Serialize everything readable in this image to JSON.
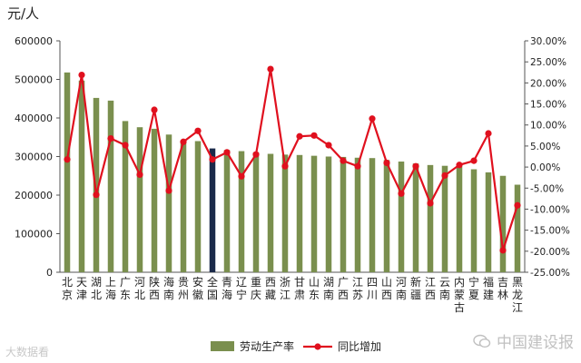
{
  "chart_data": {
    "type": "bar",
    "unit_label": "元/人",
    "categories": [
      "北京",
      "天津",
      "湖北",
      "上海",
      "广东",
      "河北",
      "陕西",
      "海南",
      "贵州",
      "安徽",
      "全国",
      "青海",
      "辽宁",
      "重庆",
      "西藏",
      "浙江",
      "甘肃",
      "山东",
      "湖南",
      "广西",
      "江苏",
      "四川",
      "山西",
      "河南",
      "新疆",
      "江西",
      "云南",
      "内蒙古",
      "宁夏",
      "福建",
      "吉林",
      "黑龙江"
    ],
    "series": [
      {
        "name": "劳动生产率",
        "type": "bar",
        "axis": "left",
        "color": "#7a8f4e",
        "highlight_color": "#1b2a4a",
        "highlight_index": 10,
        "values": [
          518000,
          497000,
          452000,
          445000,
          392000,
          376000,
          372000,
          357000,
          342000,
          340000,
          321000,
          317000,
          314000,
          311000,
          307000,
          305000,
          304000,
          302000,
          300000,
          299000,
          297000,
          296000,
          291000,
          287000,
          282000,
          278000,
          276000,
          275000,
          267000,
          259000,
          250000,
          227000
        ]
      },
      {
        "name": "同比增加",
        "type": "line",
        "axis": "right",
        "color": "#e0101e",
        "values": [
          1.8,
          21.9,
          -6.6,
          6.8,
          5.2,
          -1.8,
          13.6,
          -5.6,
          6.0,
          8.6,
          1.8,
          3.5,
          -2.2,
          3.0,
          23.3,
          0.2,
          7.3,
          7.5,
          5.2,
          1.5,
          0.2,
          11.5,
          1.0,
          -6.3,
          0.2,
          -8.6,
          -2.0,
          0.5,
          1.5,
          8.0,
          -19.8,
          -9.1
        ]
      }
    ],
    "y_left": {
      "min": 0,
      "max": 600000,
      "step": 100000
    },
    "y_right": {
      "min": -25,
      "max": 30,
      "step": 5
    },
    "legend_position": "bottom",
    "grid": false
  },
  "watermark": {
    "left": "大数据看",
    "right": "中国建设报",
    "right_icon": "wechat-icon"
  }
}
